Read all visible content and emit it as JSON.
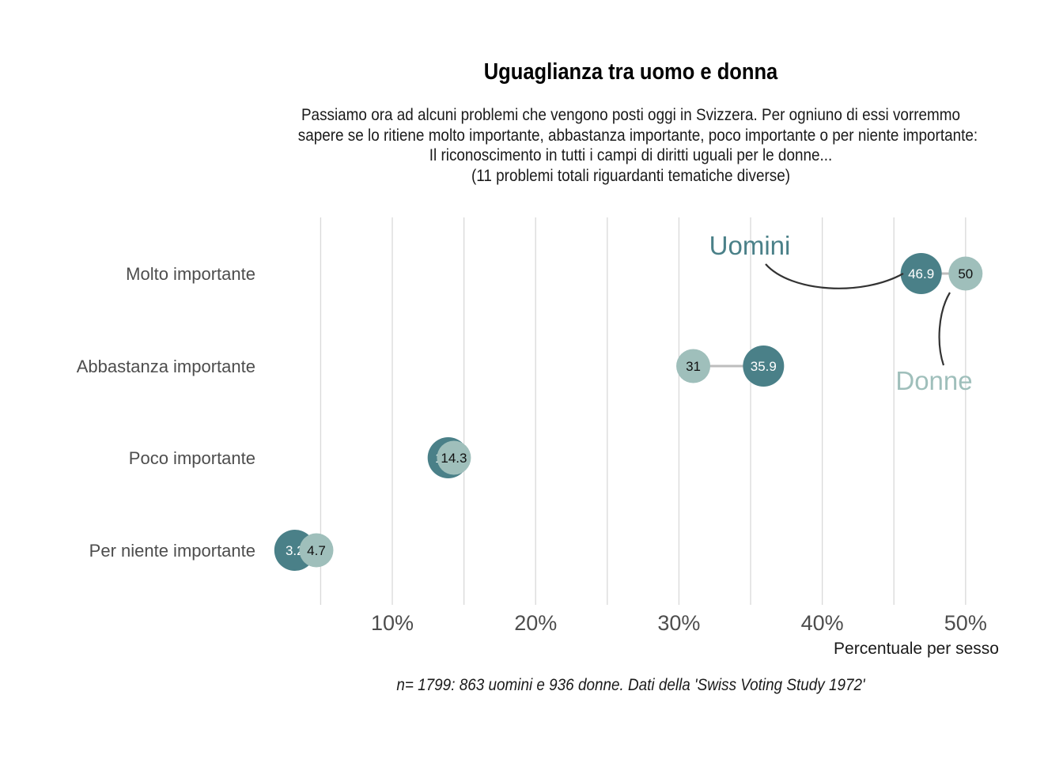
{
  "title": "Uguaglianza tra uomo e donna",
  "subtitle": [
    "Passiamo ora ad alcuni problemi che vengono posti oggi in Svizzera. Per ogniuno di essi vorremmo",
    "sapere se lo ritiene molto importante, abbastanza importante, poco importante o per niente importante:",
    "Il riconoscimento in tutti i campi di diritti uguali per le donne...",
    "(11 problemi totali riguardanti tematiche diverse)"
  ],
  "caption": "n= 1799: 863 uomini e 936 donne. Dati della 'Swiss Voting Study 1972'",
  "colors": {
    "uomini": "#4a8088",
    "donne": "#9fbfbb",
    "grid": "#d9d9d9",
    "connector": "#bdbdbd",
    "annotation_line": "#333333"
  },
  "chart_data": {
    "type": "dumbbell",
    "categories": [
      "Molto importante",
      "Abbastanza importante",
      "Poco importante",
      "Per niente importante"
    ],
    "series": [
      {
        "name": "Uomini",
        "values": [
          46.9,
          35.9,
          13.9,
          3.2
        ]
      },
      {
        "name": "Donne",
        "values": [
          50,
          31,
          14.3,
          4.7
        ]
      }
    ],
    "x_ticks": [
      "10%",
      "20%",
      "30%",
      "40%",
      "50%"
    ],
    "x_tick_values": [
      10,
      20,
      30,
      40,
      50
    ],
    "xlabel": "Percentuale per sesso",
    "xlim": [
      1.5,
      51.5
    ],
    "grid": "vertical",
    "annotations": [
      "Uomini",
      "Donne"
    ]
  }
}
